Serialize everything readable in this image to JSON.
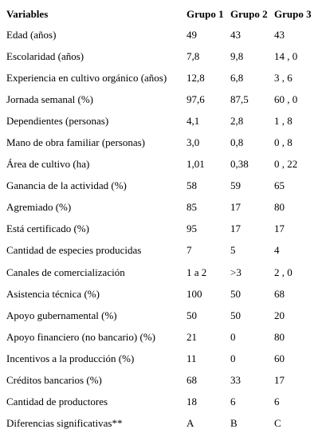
{
  "table": {
    "headers": [
      "Variables",
      "Grupo 1",
      "Grupo 2",
      "Grupo 3"
    ],
    "rows": [
      [
        "Edad (años)",
        "49",
        "43",
        "43"
      ],
      [
        "Escolaridad (años)",
        "7,8",
        "9,8",
        "14 , 0"
      ],
      [
        "Experiencia en cultivo orgánico (años)",
        "12,8",
        "6,8",
        "3 , 6"
      ],
      [
        "Jornada semanal (%)",
        "97,6",
        "87,5",
        "60 , 0"
      ],
      [
        "Dependientes (personas)",
        "4,1",
        "2,8",
        "1 , 8"
      ],
      [
        "Mano de obra familiar (personas)",
        "3,0",
        "0,8",
        "0 , 8"
      ],
      [
        "Área de cultivo (ha)",
        "1,01",
        "0,38",
        "0 , 22"
      ],
      [
        "Ganancia de la actividad (%)",
        "58",
        "59",
        "65"
      ],
      [
        "Agremiado (%)",
        "85",
        "17",
        "80"
      ],
      [
        "Está certificado (%)",
        "95",
        "17",
        "17"
      ],
      [
        "Cantidad de especies producidas",
        "7",
        "5",
        "4"
      ],
      [
        "Canales de comercialización",
        "1 a 2",
        ">3",
        "2 , 0"
      ],
      [
        "Asistencia técnica (%)",
        "100",
        "50",
        "68"
      ],
      [
        "Apoyo gubernamental (%)",
        "50",
        "50",
        "20"
      ],
      [
        "Apoyo financiero (no bancario) (%)",
        "21",
        "0",
        "80"
      ],
      [
        "Incentivos a la producción (%)",
        "11",
        "0",
        "60"
      ],
      [
        "Créditos bancarios (%)",
        "68",
        "33",
        "17"
      ],
      [
        "Cantidad de productores",
        "18",
        "6",
        "6"
      ],
      [
        "Diferencias significativas**",
        "A",
        "B",
        "C"
      ]
    ]
  }
}
